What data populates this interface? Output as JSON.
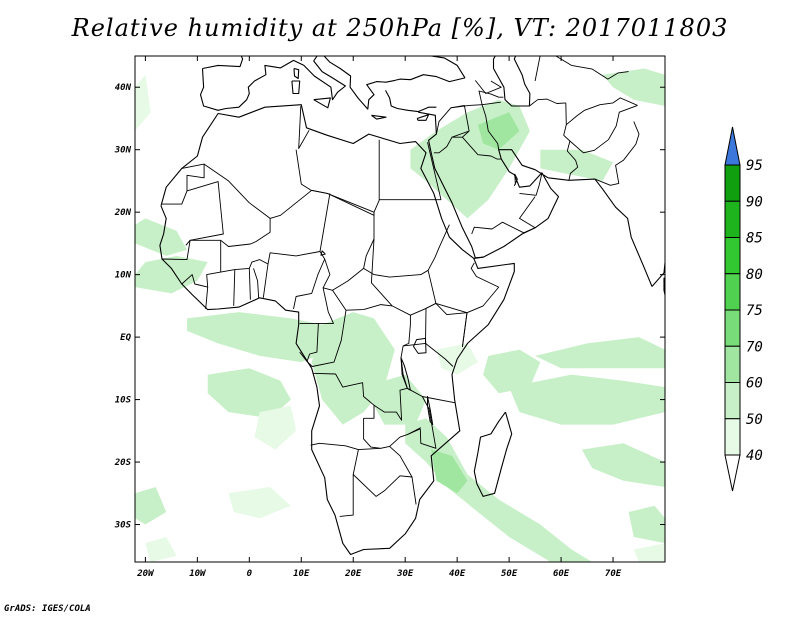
{
  "title": "Relative humidity at 250hPa [%], VT: 2017011803",
  "credit": "GrADS: IGES/COLA",
  "map": {
    "lon_range": [
      -22,
      80
    ],
    "lat_range": [
      -36,
      45
    ],
    "lon_ticks": [
      {
        "value": -20,
        "label": "20W"
      },
      {
        "value": -10,
        "label": "10W"
      },
      {
        "value": 0,
        "label": "0"
      },
      {
        "value": 10,
        "label": "10E"
      },
      {
        "value": 20,
        "label": "20E"
      },
      {
        "value": 30,
        "label": "30E"
      },
      {
        "value": 40,
        "label": "40E"
      },
      {
        "value": 50,
        "label": "50E"
      },
      {
        "value": 60,
        "label": "60E"
      },
      {
        "value": 70,
        "label": "70E"
      }
    ],
    "lat_ticks": [
      {
        "value": 40,
        "label": "40N"
      },
      {
        "value": 30,
        "label": "30N"
      },
      {
        "value": 20,
        "label": "20N"
      },
      {
        "value": 10,
        "label": "10N"
      },
      {
        "value": 0,
        "label": "EQ"
      },
      {
        "value": -10,
        "label": "10S"
      },
      {
        "value": -20,
        "label": "20S"
      },
      {
        "value": -30,
        "label": "30S"
      }
    ],
    "humid_regions": [
      {
        "level": 60,
        "points": [
          [
            -22,
            15
          ],
          [
            -16,
            13
          ],
          [
            -12,
            14
          ],
          [
            -14,
            17
          ],
          [
            -20,
            19
          ],
          [
            -22,
            18
          ]
        ]
      },
      {
        "level": 60,
        "points": [
          [
            -22,
            8
          ],
          [
            -15,
            7
          ],
          [
            -10,
            9
          ],
          [
            -8,
            12
          ],
          [
            -14,
            13
          ],
          [
            -20,
            12
          ],
          [
            -22,
            10
          ]
        ]
      },
      {
        "level": 60,
        "points": [
          [
            -12,
            3
          ],
          [
            -2,
            4
          ],
          [
            8,
            3
          ],
          [
            14,
            2
          ],
          [
            16,
            -2
          ],
          [
            10,
            -4
          ],
          [
            2,
            -3
          ],
          [
            -6,
            -1
          ],
          [
            -12,
            1
          ]
        ]
      },
      {
        "level": 60,
        "points": [
          [
            -8,
            -6
          ],
          [
            0,
            -5
          ],
          [
            6,
            -7
          ],
          [
            8,
            -10
          ],
          [
            4,
            -13
          ],
          [
            -4,
            -12
          ],
          [
            -8,
            -9
          ]
        ]
      },
      {
        "level": 50,
        "points": [
          [
            2,
            -12
          ],
          [
            8,
            -11
          ],
          [
            9,
            -15
          ],
          [
            5,
            -18
          ],
          [
            1,
            -16
          ]
        ]
      },
      {
        "level": 60,
        "points": [
          [
            14,
            2
          ],
          [
            20,
            4
          ],
          [
            24,
            3
          ],
          [
            28,
            -2
          ],
          [
            26,
            -8
          ],
          [
            22,
            -12
          ],
          [
            18,
            -14
          ],
          [
            14,
            -10
          ],
          [
            12,
            -4
          ]
        ]
      },
      {
        "level": 60,
        "points": [
          [
            22,
            -8
          ],
          [
            30,
            -6
          ],
          [
            34,
            -10
          ],
          [
            32,
            -14
          ],
          [
            26,
            -14
          ]
        ]
      },
      {
        "level": 60,
        "points": [
          [
            30,
            -14
          ],
          [
            34,
            -13
          ],
          [
            38,
            -16
          ],
          [
            42,
            -22
          ],
          [
            48,
            -26
          ],
          [
            56,
            -30
          ],
          [
            62,
            -34
          ],
          [
            66,
            -36
          ],
          [
            58,
            -36
          ],
          [
            50,
            -32
          ],
          [
            44,
            -28
          ],
          [
            38,
            -24
          ],
          [
            34,
            -20
          ],
          [
            30,
            -17
          ]
        ]
      },
      {
        "level": 70,
        "points": [
          [
            35,
            -18
          ],
          [
            39,
            -19
          ],
          [
            42,
            -23
          ],
          [
            40,
            -25
          ],
          [
            36,
            -23
          ]
        ]
      },
      {
        "level": 60,
        "points": [
          [
            46,
            -3
          ],
          [
            52,
            -2
          ],
          [
            56,
            -4
          ],
          [
            54,
            -8
          ],
          [
            48,
            -9
          ],
          [
            45,
            -6
          ]
        ]
      },
      {
        "level": 60,
        "points": [
          [
            50,
            -8
          ],
          [
            62,
            -6
          ],
          [
            72,
            -7
          ],
          [
            80,
            -8
          ],
          [
            80,
            -12
          ],
          [
            70,
            -14
          ],
          [
            60,
            -14
          ],
          [
            52,
            -12
          ]
        ]
      },
      {
        "level": 60,
        "points": [
          [
            55,
            -3
          ],
          [
            65,
            -1
          ],
          [
            75,
            0
          ],
          [
            80,
            -2
          ],
          [
            80,
            -5
          ],
          [
            70,
            -5
          ],
          [
            60,
            -5
          ]
        ]
      },
      {
        "level": 60,
        "points": [
          [
            64,
            -18
          ],
          [
            72,
            -17
          ],
          [
            80,
            -20
          ],
          [
            80,
            -24
          ],
          [
            72,
            -23
          ],
          [
            66,
            -21
          ]
        ]
      },
      {
        "level": 60,
        "points": [
          [
            73,
            -28
          ],
          [
            78,
            -27
          ],
          [
            80,
            -29
          ],
          [
            80,
            -33
          ],
          [
            74,
            -32
          ]
        ]
      },
      {
        "level": 60,
        "points": [
          [
            31,
            30
          ],
          [
            36,
            33
          ],
          [
            42,
            36
          ],
          [
            48,
            38
          ],
          [
            52,
            37
          ],
          [
            54,
            33
          ],
          [
            50,
            27
          ],
          [
            46,
            22
          ],
          [
            42,
            19
          ],
          [
            38,
            22
          ],
          [
            34,
            25
          ],
          [
            31,
            27
          ]
        ]
      },
      {
        "level": 70,
        "points": [
          [
            44,
            34
          ],
          [
            50,
            36
          ],
          [
            52,
            33
          ],
          [
            48,
            30
          ],
          [
            45,
            31
          ]
        ]
      },
      {
        "level": 60,
        "points": [
          [
            56,
            30
          ],
          [
            64,
            30
          ],
          [
            70,
            28
          ],
          [
            68,
            25
          ],
          [
            62,
            26
          ],
          [
            56,
            27
          ]
        ]
      },
      {
        "level": 60,
        "points": [
          [
            68,
            42
          ],
          [
            76,
            43
          ],
          [
            80,
            42
          ],
          [
            80,
            37
          ],
          [
            74,
            38
          ],
          [
            70,
            40
          ]
        ]
      },
      {
        "level": 60,
        "points": [
          [
            -22,
            -25
          ],
          [
            -18,
            -24
          ],
          [
            -16,
            -28
          ],
          0,
          [
            -20,
            -30
          ],
          [
            -22,
            -29
          ]
        ]
      },
      {
        "level": 50,
        "points": [
          [
            -20,
            -33
          ],
          [
            -16,
            -32
          ],
          [
            -14,
            -35
          ],
          [
            -19,
            -36
          ]
        ]
      },
      {
        "level": 50,
        "points": [
          [
            -4,
            -25
          ],
          [
            4,
            -24
          ],
          [
            8,
            -27
          ],
          [
            2,
            -29
          ],
          [
            -3,
            -28
          ]
        ]
      },
      {
        "level": 50,
        "points": [
          [
            -22,
            40
          ],
          [
            -20,
            42
          ],
          [
            -19,
            36
          ],
          [
            -22,
            33
          ]
        ]
      },
      {
        "level": 50,
        "points": [
          [
            36,
            -2
          ],
          [
            42,
            -1
          ],
          [
            44,
            -4
          ],
          [
            40,
            -6
          ],
          [
            37,
            -5
          ]
        ]
      },
      {
        "level": 50,
        "points": [
          [
            74,
            -34
          ],
          [
            80,
            -33
          ],
          [
            80,
            -36
          ],
          [
            75,
            -36
          ]
        ]
      }
    ],
    "color_levels": [
      {
        "value": 40,
        "color": "#ffffff"
      },
      {
        "value": 50,
        "color": "#e6fae6"
      },
      {
        "value": 60,
        "color": "#c8f0c8"
      },
      {
        "value": 70,
        "color": "#a0e6a0"
      },
      {
        "value": 75,
        "color": "#78dc78"
      },
      {
        "value": 80,
        "color": "#50d250"
      },
      {
        "value": 85,
        "color": "#32c832"
      },
      {
        "value": 90,
        "color": "#1eb41e"
      },
      {
        "value": 95,
        "color": "#0f9f0f"
      }
    ],
    "colorbar": {
      "labels": [
        "40",
        "50",
        "60",
        "70",
        "75",
        "80",
        "85",
        "90",
        "95"
      ],
      "colors": [
        "#e6fae6",
        "#c8f0c8",
        "#a0e6a0",
        "#78dc78",
        "#50d250",
        "#32c832",
        "#1eb41e",
        "#0f9f0f"
      ],
      "top_color": "#3c78dc",
      "bottom_color": "#ffffff"
    }
  }
}
